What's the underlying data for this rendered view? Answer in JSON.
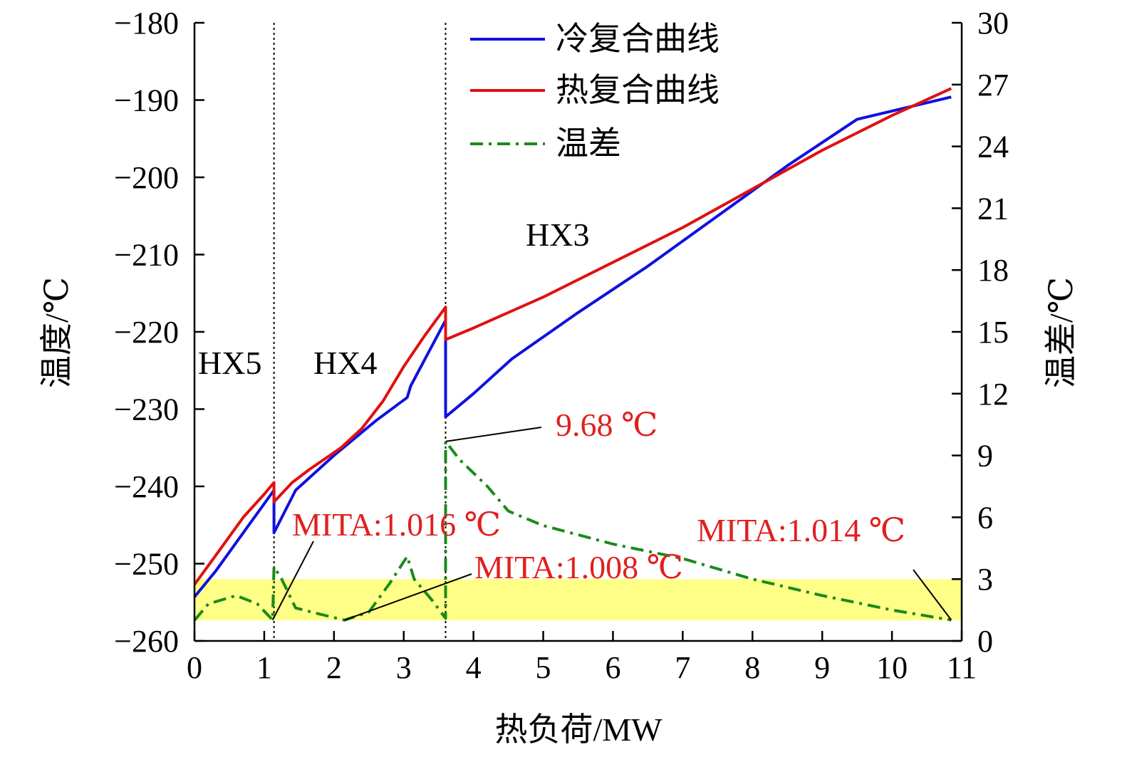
{
  "chart_data": {
    "type": "line",
    "xlabel": "热负荷/MW",
    "ylabel_left": "温度/℃",
    "ylabel_right": "温差/℃",
    "xlim": [
      0,
      11
    ],
    "ylim_left": [
      -260,
      -180
    ],
    "ylim_right": [
      0,
      30
    ],
    "x_ticks": [
      "0",
      "1",
      "2",
      "3",
      "4",
      "5",
      "6",
      "7",
      "8",
      "9",
      "10",
      "11"
    ],
    "y_left_ticks": [
      "−180",
      "−190",
      "−200",
      "−210",
      "−220",
      "−230",
      "−240",
      "−250",
      "−260"
    ],
    "y_right_ticks": [
      "30",
      "27",
      "24",
      "21",
      "18",
      "15",
      "12",
      "9",
      "6",
      "3",
      "0"
    ],
    "grid": false,
    "legend_position": "top",
    "colors": {
      "cold": "#1010e0",
      "hot": "#e01010",
      "diff": "#1a8a1a",
      "highlight": "#ffff60",
      "annotation": "#e0201f"
    },
    "series": [
      {
        "name": "冷复合曲线",
        "axis": "left",
        "style": "solid",
        "points": [
          [
            0,
            -254.3
          ],
          [
            0.3,
            -251
          ],
          [
            0.7,
            -246
          ],
          [
            1.14,
            -240.5
          ],
          [
            1.14,
            -246
          ],
          [
            1.45,
            -240.5
          ],
          [
            2.0,
            -236
          ],
          [
            2.6,
            -231.5
          ],
          [
            3.05,
            -228.5
          ],
          [
            3.1,
            -227
          ],
          [
            3.6,
            -218.5
          ],
          [
            3.6,
            -231
          ],
          [
            4.0,
            -228
          ],
          [
            4.55,
            -223.5
          ],
          [
            5.5,
            -217.5
          ],
          [
            6.5,
            -211.5
          ],
          [
            7.5,
            -205
          ],
          [
            8.5,
            -198.5
          ],
          [
            9.5,
            -192.5
          ],
          [
            10.85,
            -189.6
          ]
        ]
      },
      {
        "name": "热复合曲线",
        "axis": "left",
        "style": "solid",
        "points": [
          [
            0,
            -252.7
          ],
          [
            0.3,
            -249
          ],
          [
            0.7,
            -244
          ],
          [
            1.0,
            -241
          ],
          [
            1.14,
            -239.5
          ],
          [
            1.14,
            -242
          ],
          [
            1.4,
            -239.5
          ],
          [
            1.65,
            -237.8
          ],
          [
            2.1,
            -235
          ],
          [
            2.4,
            -232.5
          ],
          [
            2.7,
            -229
          ],
          [
            3.0,
            -224.5
          ],
          [
            3.3,
            -220.5
          ],
          [
            3.6,
            -216.8
          ],
          [
            3.6,
            -221
          ],
          [
            4.0,
            -219.5
          ],
          [
            5.0,
            -215.5
          ],
          [
            6.0,
            -211
          ],
          [
            7.0,
            -206.5
          ],
          [
            8.0,
            -201.5
          ],
          [
            9.0,
            -196.5
          ],
          [
            10.0,
            -192
          ],
          [
            10.85,
            -188.5
          ]
        ]
      },
      {
        "name": "温差",
        "axis": "right",
        "style": "dash-dot",
        "points": [
          [
            0,
            1.0
          ],
          [
            0.2,
            1.8
          ],
          [
            0.6,
            2.2
          ],
          [
            0.9,
            1.8
          ],
          [
            1.12,
            1.016
          ],
          [
            1.14,
            3.6
          ],
          [
            1.25,
            3.0
          ],
          [
            1.45,
            1.6
          ],
          [
            1.8,
            1.3
          ],
          [
            2.15,
            1.008
          ],
          [
            2.5,
            1.4
          ],
          [
            2.8,
            2.8
          ],
          [
            3.05,
            4.1
          ],
          [
            3.15,
            3.0
          ],
          [
            3.4,
            2.0
          ],
          [
            3.6,
            1.1
          ],
          [
            3.6,
            9.68
          ],
          [
            3.8,
            8.8
          ],
          [
            4.2,
            7.5
          ],
          [
            4.5,
            6.3
          ],
          [
            5.0,
            5.6
          ],
          [
            6.0,
            4.7
          ],
          [
            7.0,
            4.0
          ],
          [
            8.0,
            3.0
          ],
          [
            9.0,
            2.2
          ],
          [
            10.0,
            1.5
          ],
          [
            10.85,
            1.014
          ]
        ]
      }
    ],
    "dividers_x": [
      1.14,
      3.6
    ],
    "highlight_band_right": [
      1.0,
      3.0
    ],
    "regions": [
      "HX5",
      "HX4",
      "HX3"
    ],
    "annotations": [
      {
        "text": "9.68 ℃",
        "at": [
          3.6,
          9.68
        ]
      },
      {
        "text": "MITA:1.016 ℃",
        "at": [
          1.12,
          1.016
        ]
      },
      {
        "text": "MITA:1.008 ℃",
        "at": [
          2.15,
          1.008
        ]
      },
      {
        "text": "MITA:1.014 ℃",
        "at": [
          10.85,
          1.014
        ]
      }
    ]
  }
}
